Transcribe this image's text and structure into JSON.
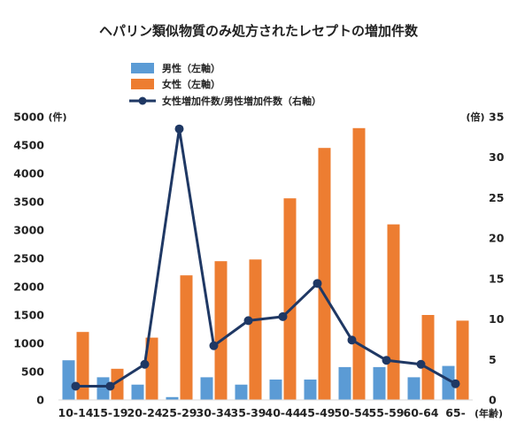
{
  "chart_data": {
    "type": "bar",
    "title": "ヘパリン類似物質のみ処方されたレセプトの増加件数",
    "categories": [
      "10-14",
      "15-19",
      "20-24",
      "25-29",
      "30-34",
      "35-39",
      "40-44",
      "45-49",
      "50-54",
      "55-59",
      "60-64",
      "65-"
    ],
    "series": [
      {
        "name": "男性（左軸）",
        "type": "bar",
        "axis": "left",
        "color": "#5B9BD5",
        "values": [
          700,
          400,
          270,
          50,
          400,
          270,
          360,
          360,
          580,
          580,
          400,
          600
        ]
      },
      {
        "name": "女性（左軸）",
        "type": "bar",
        "axis": "left",
        "color": "#ED7D31",
        "values": [
          1200,
          550,
          1100,
          2200,
          2450,
          2480,
          3560,
          4450,
          4800,
          3100,
          1500,
          1400
        ]
      },
      {
        "name": "女性増加件数/男性増加件数（右軸）",
        "type": "line",
        "axis": "right",
        "color": "#1F3864",
        "values": [
          1.7,
          1.7,
          4.4,
          33.5,
          6.7,
          9.8,
          10.3,
          14.4,
          7.4,
          4.9,
          4.4,
          2.0
        ]
      }
    ],
    "y_left": {
      "unit": "(件)",
      "range": [
        0,
        5000
      ],
      "ticks": [
        "0",
        "500",
        "1000",
        "1500",
        "2000",
        "2500",
        "3000",
        "3500",
        "4000",
        "4500",
        "5000"
      ]
    },
    "y_right": {
      "unit": "(倍)",
      "range": [
        0,
        35
      ],
      "ticks": [
        "0",
        "5",
        "10",
        "15",
        "20",
        "25",
        "30",
        "35"
      ]
    },
    "x_unit": "(年齢)",
    "grid": false,
    "legend_position": "top"
  }
}
